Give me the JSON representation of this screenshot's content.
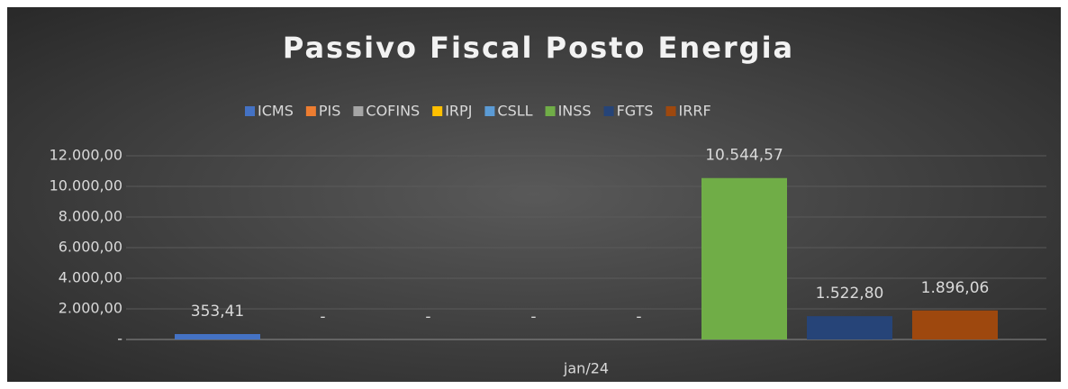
{
  "chart_data": {
    "type": "bar",
    "title": "Passivo Fiscal Posto Energia",
    "categories": [
      "jan/24"
    ],
    "series": [
      {
        "name": "ICMS",
        "color": "#4472c4",
        "values": [
          353.41
        ],
        "value_labels": [
          "353,41"
        ]
      },
      {
        "name": "PIS",
        "color": "#ed7d31",
        "values": [
          0
        ],
        "value_labels": [
          "-"
        ]
      },
      {
        "name": "COFINS",
        "color": "#a5a5a5",
        "values": [
          0
        ],
        "value_labels": [
          "-"
        ]
      },
      {
        "name": "IRPJ",
        "color": "#ffc000",
        "values": [
          0
        ],
        "value_labels": [
          "-"
        ]
      },
      {
        "name": "CSLL",
        "color": "#5b9bd5",
        "values": [
          0
        ],
        "value_labels": [
          "-"
        ]
      },
      {
        "name": "INSS",
        "color": "#70ad47",
        "values": [
          10544.57
        ],
        "value_labels": [
          "10.544,57"
        ]
      },
      {
        "name": "FGTS",
        "color": "#264478",
        "values": [
          1522.8
        ],
        "value_labels": [
          "1.522,80"
        ]
      },
      {
        "name": "IRRF",
        "color": "#9e480e",
        "values": [
          1896.06
        ],
        "value_labels": [
          "1.896,06"
        ]
      }
    ],
    "ylim": [
      0,
      12000
    ],
    "yticks": [
      {
        "value": 0,
        "label": "-"
      },
      {
        "value": 2000,
        "label": "2.000,00"
      },
      {
        "value": 4000,
        "label": "4.000,00"
      },
      {
        "value": 6000,
        "label": "6.000,00"
      },
      {
        "value": 8000,
        "label": "8.000,00"
      },
      {
        "value": 10000,
        "label": "10.000,00"
      },
      {
        "value": 12000,
        "label": "12.000,00"
      }
    ],
    "grid": true,
    "legend": "top"
  }
}
